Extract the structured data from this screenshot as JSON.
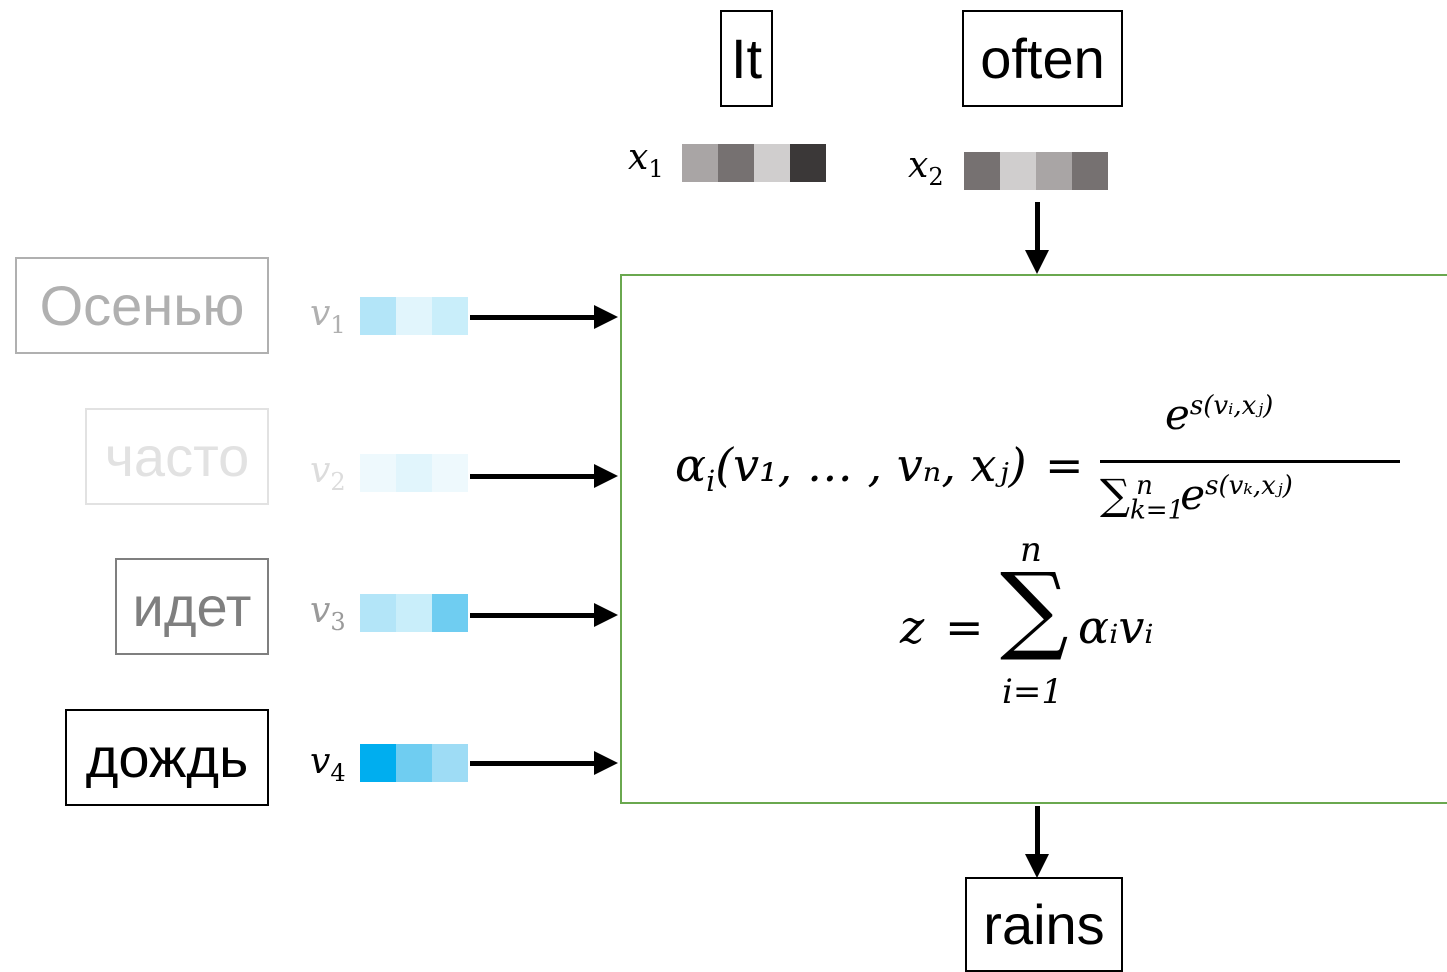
{
  "target_words": {
    "it": "It",
    "often": "often",
    "rains": "rains"
  },
  "source_words": [
    {
      "label": "Осенью",
      "color": "#b0b0b0",
      "border": "#b0b0b0"
    },
    {
      "label": "часто",
      "color": "#e2e2e2",
      "border": "#e2e2e2"
    },
    {
      "label": "идет",
      "color": "#7f7f7f",
      "border": "#7f7f7f"
    },
    {
      "label": "дождь",
      "color": "#000000",
      "border": "#000000"
    }
  ],
  "source_vectors": [
    {
      "var": "v",
      "index": "1",
      "label_color": "#b0b0b0",
      "cells": [
        "#b3e5f8",
        "#e1f5fc",
        "#c9eefa"
      ]
    },
    {
      "var": "v",
      "index": "2",
      "label_color": "#dcdcdc",
      "cells": [
        "#eef9fd",
        "#e1f5fc",
        "#eef9fd"
      ]
    },
    {
      "var": "v",
      "index": "3",
      "label_color": "#9a9a9a",
      "cells": [
        "#b3e5f8",
        "#c9eefa",
        "#6fcdf1"
      ]
    },
    {
      "var": "v",
      "index": "4",
      "label_color": "#000000",
      "cells": [
        "#00aeef",
        "#6fcdf1",
        "#9edcf5"
      ]
    }
  ],
  "target_vectors": [
    {
      "var": "x",
      "index": "1",
      "cells": [
        "#a9a5a5",
        "#767171",
        "#d0cece",
        "#3b3838"
      ]
    },
    {
      "var": "x",
      "index": "2",
      "cells": [
        "#767171",
        "#d0cece",
        "#a9a5a5",
        "#767171"
      ]
    }
  ],
  "formula": {
    "alpha": "α",
    "i": "i",
    "args": "(v₁, … , vₙ, xⱼ)",
    "eq": "=",
    "numerator": "e",
    "numerator_exp": "s(vᵢ,xⱼ)",
    "sum": "∑",
    "sum_sub": "k=1",
    "sum_sup": "n",
    "denominator_e": "e",
    "denominator_exp": "s(vₖ,xⱼ)",
    "z": "z",
    "big_sum": "∑",
    "big_sum_top": "n",
    "big_sum_bottom": "i=1",
    "term": "αᵢvᵢ"
  },
  "colors": {
    "attention_box_border": "#6aa84f"
  }
}
